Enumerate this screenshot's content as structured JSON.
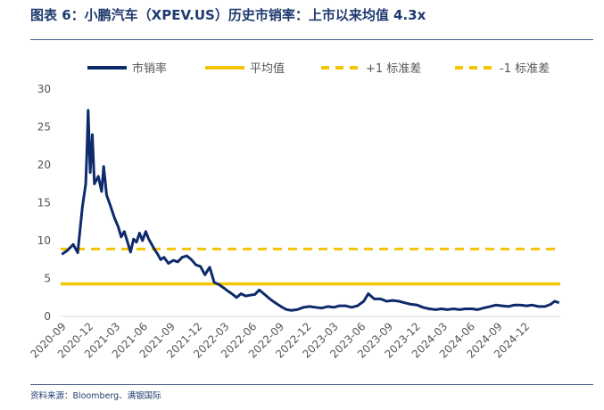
{
  "figure": {
    "title": "图表 6：小鹏汽车（XPEV.US）历史市销率：上市以来均值 4.3x",
    "source": "资料来源：Bloomberg、满银国际"
  },
  "chart_data": {
    "type": "line",
    "title": "",
    "xlabel": "",
    "ylabel": "",
    "ylim": [
      0,
      30
    ],
    "y_ticks": [
      0,
      5,
      10,
      15,
      20,
      25,
      30
    ],
    "x_ticks": [
      "2020-09",
      "2020-12",
      "2021-03",
      "2021-06",
      "2021-09",
      "2021-12",
      "2022-03",
      "2022-06",
      "2022-09",
      "2022-12",
      "2023-03",
      "2023-06",
      "2023-09",
      "2023-12",
      "2024-03",
      "2024-06",
      "2024-09",
      "2024-12"
    ],
    "grid": false,
    "legend_position": "top",
    "series": [
      {
        "name": "市销率",
        "color": "#0d2a6b",
        "style": "solid",
        "x": [
          "2020-08-28",
          "2020-09-15",
          "2020-10-05",
          "2020-10-20",
          "2020-11-05",
          "2020-11-16",
          "2020-11-20",
          "2020-11-24",
          "2020-12-01",
          "2020-12-08",
          "2020-12-15",
          "2020-12-28",
          "2021-01-08",
          "2021-01-15",
          "2021-01-25",
          "2021-02-05",
          "2021-02-20",
          "2021-03-05",
          "2021-03-15",
          "2021-03-25",
          "2021-04-05",
          "2021-04-15",
          "2021-04-25",
          "2021-05-05",
          "2021-05-15",
          "2021-05-25",
          "2021-06-05",
          "2021-06-15",
          "2021-06-25",
          "2021-07-05",
          "2021-07-15",
          "2021-07-25",
          "2021-08-05",
          "2021-08-20",
          "2021-09-05",
          "2021-09-20",
          "2021-10-05",
          "2021-10-20",
          "2021-11-05",
          "2021-11-20",
          "2021-12-05",
          "2021-12-20",
          "2022-01-05",
          "2022-01-20",
          "2022-02-05",
          "2022-02-20",
          "2022-03-05",
          "2022-03-20",
          "2022-04-05",
          "2022-04-20",
          "2022-05-05",
          "2022-05-20",
          "2022-06-05",
          "2022-06-20",
          "2022-07-05",
          "2022-07-20",
          "2022-08-05",
          "2022-08-20",
          "2022-09-05",
          "2022-09-20",
          "2022-10-05",
          "2022-10-25",
          "2022-11-15",
          "2022-12-05",
          "2022-12-25",
          "2023-01-15",
          "2023-02-05",
          "2023-02-25",
          "2023-03-15",
          "2023-04-05",
          "2023-04-25",
          "2023-05-15",
          "2023-06-05",
          "2023-06-20",
          "2023-07-10",
          "2023-08-01",
          "2023-08-20",
          "2023-09-10",
          "2023-10-01",
          "2023-10-20",
          "2023-11-10",
          "2023-12-01",
          "2023-12-20",
          "2024-01-10",
          "2024-02-01",
          "2024-02-20",
          "2024-03-10",
          "2024-04-01",
          "2024-04-20",
          "2024-05-10",
          "2024-06-01",
          "2024-06-20",
          "2024-07-10",
          "2024-08-01",
          "2024-08-20",
          "2024-09-10",
          "2024-10-01",
          "2024-10-20",
          "2024-11-10",
          "2024-12-01",
          "2024-12-20",
          "2025-01-10",
          "2025-02-01",
          "2025-02-20",
          "2025-03-05",
          "2025-03-20"
        ],
        "values": [
          8.2,
          8.7,
          9.5,
          8.4,
          14.5,
          17.5,
          22.0,
          27.2,
          19.0,
          24.0,
          17.5,
          18.5,
          16.5,
          19.8,
          16.0,
          14.8,
          13.0,
          11.8,
          10.5,
          11.2,
          9.8,
          8.5,
          10.2,
          9.8,
          11.0,
          10.0,
          11.2,
          10.2,
          9.5,
          8.8,
          8.2,
          7.5,
          7.8,
          7.0,
          7.4,
          7.2,
          7.8,
          8.0,
          7.5,
          6.8,
          6.6,
          5.5,
          6.5,
          4.5,
          4.2,
          3.8,
          3.4,
          3.0,
          2.5,
          3.0,
          2.7,
          2.8,
          2.9,
          3.5,
          3.0,
          2.5,
          2.0,
          1.6,
          1.2,
          0.9,
          0.8,
          0.9,
          1.2,
          1.3,
          1.2,
          1.1,
          1.3,
          1.2,
          1.4,
          1.4,
          1.2,
          1.4,
          2.0,
          3.0,
          2.3,
          2.3,
          2.0,
          2.1,
          2.0,
          1.8,
          1.6,
          1.5,
          1.2,
          1.0,
          0.9,
          1.0,
          0.9,
          1.0,
          0.9,
          1.0,
          1.0,
          0.9,
          1.1,
          1.3,
          1.5,
          1.4,
          1.3,
          1.5,
          1.5,
          1.4,
          1.5,
          1.3,
          1.3,
          1.6,
          2.0,
          1.8
        ]
      },
      {
        "name": "平均值",
        "color": "#f5c400",
        "style": "solid",
        "value": 4.3
      },
      {
        "name": "+1 标准差",
        "color": "#f5c400",
        "style": "dashed",
        "value": 8.9
      },
      {
        "name": "-1 标准差",
        "color": "#f5c400",
        "style": "dashed",
        "value": -0.3
      }
    ]
  }
}
